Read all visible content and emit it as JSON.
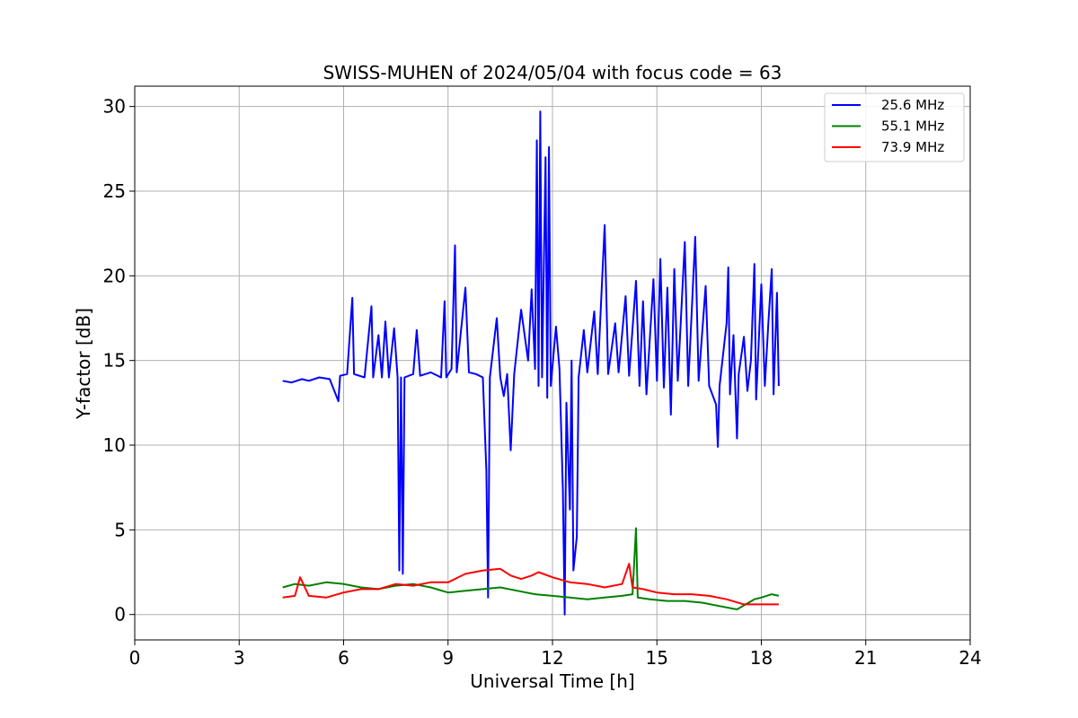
{
  "chart_data": {
    "type": "line",
    "title": "SWISS-MUHEN of 2024/05/04 with focus code = 63",
    "xlabel": "Universal Time [h]",
    "ylabel": "Y-factor [dB]",
    "xlim": [
      0,
      24
    ],
    "ylim": [
      -1.5,
      31.2
    ],
    "x_ticks": [
      "0",
      "3",
      "6",
      "9",
      "12",
      "15",
      "18",
      "21",
      "24"
    ],
    "y_ticks": [
      "0",
      "5",
      "10",
      "15",
      "20",
      "25",
      "30"
    ],
    "grid": true,
    "legend_position": "top-right",
    "series": [
      {
        "name": "25.6 MHz",
        "color": "#0000ff",
        "points": [
          [
            4.25,
            13.8
          ],
          [
            4.5,
            13.7
          ],
          [
            4.8,
            13.9
          ],
          [
            5.0,
            13.8
          ],
          [
            5.3,
            14.0
          ],
          [
            5.6,
            13.9
          ],
          [
            5.85,
            12.6
          ],
          [
            5.9,
            14.1
          ],
          [
            6.1,
            14.2
          ],
          [
            6.25,
            18.7
          ],
          [
            6.3,
            14.2
          ],
          [
            6.6,
            14.0
          ],
          [
            6.8,
            18.2
          ],
          [
            6.85,
            14.0
          ],
          [
            7.0,
            16.5
          ],
          [
            7.1,
            14.0
          ],
          [
            7.2,
            17.3
          ],
          [
            7.3,
            14.0
          ],
          [
            7.45,
            16.9
          ],
          [
            7.55,
            14.0
          ],
          [
            7.6,
            2.6
          ],
          [
            7.65,
            14.0
          ],
          [
            7.7,
            2.4
          ],
          [
            7.75,
            14.0
          ],
          [
            8.0,
            14.2
          ],
          [
            8.1,
            16.8
          ],
          [
            8.2,
            14.1
          ],
          [
            8.5,
            14.3
          ],
          [
            8.8,
            14.0
          ],
          [
            8.9,
            18.5
          ],
          [
            8.95,
            14.0
          ],
          [
            9.1,
            14.5
          ],
          [
            9.2,
            21.8
          ],
          [
            9.25,
            14.3
          ],
          [
            9.5,
            19.3
          ],
          [
            9.6,
            14.3
          ],
          [
            9.8,
            14.2
          ],
          [
            10.0,
            14.0
          ],
          [
            10.1,
            8.5
          ],
          [
            10.15,
            1.0
          ],
          [
            10.2,
            14.0
          ],
          [
            10.4,
            17.5
          ],
          [
            10.5,
            14.0
          ],
          [
            10.6,
            12.9
          ],
          [
            10.7,
            14.2
          ],
          [
            10.8,
            9.7
          ],
          [
            10.9,
            14.2
          ],
          [
            11.1,
            18.0
          ],
          [
            11.3,
            15.0
          ],
          [
            11.4,
            19.2
          ],
          [
            11.5,
            14.5
          ],
          [
            11.55,
            28.0
          ],
          [
            11.6,
            13.5
          ],
          [
            11.65,
            29.7
          ],
          [
            11.7,
            14.0
          ],
          [
            11.8,
            27.0
          ],
          [
            11.85,
            12.8
          ],
          [
            11.9,
            27.6
          ],
          [
            11.95,
            13.5
          ],
          [
            12.1,
            17.0
          ],
          [
            12.2,
            14.5
          ],
          [
            12.3,
            7.3
          ],
          [
            12.35,
            0.0
          ],
          [
            12.4,
            12.5
          ],
          [
            12.5,
            6.2
          ],
          [
            12.55,
            15.0
          ],
          [
            12.6,
            2.6
          ],
          [
            12.7,
            4.6
          ],
          [
            12.75,
            14.0
          ],
          [
            12.9,
            16.8
          ],
          [
            13.0,
            14.3
          ],
          [
            13.2,
            17.9
          ],
          [
            13.3,
            14.2
          ],
          [
            13.5,
            23.0
          ],
          [
            13.6,
            14.2
          ],
          [
            13.8,
            17.2
          ],
          [
            13.9,
            14.3
          ],
          [
            14.1,
            18.8
          ],
          [
            14.2,
            14.1
          ],
          [
            14.4,
            19.7
          ],
          [
            14.5,
            13.5
          ],
          [
            14.6,
            18.5
          ],
          [
            14.7,
            13.0
          ],
          [
            14.9,
            19.8
          ],
          [
            15.0,
            13.8
          ],
          [
            15.1,
            21.0
          ],
          [
            15.2,
            13.4
          ],
          [
            15.3,
            19.3
          ],
          [
            15.4,
            11.8
          ],
          [
            15.5,
            20.4
          ],
          [
            15.6,
            13.8
          ],
          [
            15.8,
            22.0
          ],
          [
            15.9,
            13.5
          ],
          [
            16.1,
            22.3
          ],
          [
            16.2,
            13.8
          ],
          [
            16.4,
            19.4
          ],
          [
            16.5,
            13.5
          ],
          [
            16.7,
            12.4
          ],
          [
            16.75,
            9.9
          ],
          [
            16.8,
            13.5
          ],
          [
            17.0,
            17.2
          ],
          [
            17.05,
            20.5
          ],
          [
            17.1,
            13.0
          ],
          [
            17.2,
            16.5
          ],
          [
            17.3,
            10.4
          ],
          [
            17.35,
            14.2
          ],
          [
            17.5,
            16.4
          ],
          [
            17.6,
            13.2
          ],
          [
            17.7,
            15.0
          ],
          [
            17.8,
            20.7
          ],
          [
            17.85,
            12.7
          ],
          [
            18.0,
            19.5
          ],
          [
            18.1,
            13.5
          ],
          [
            18.2,
            17.2
          ],
          [
            18.3,
            20.4
          ],
          [
            18.35,
            13.0
          ],
          [
            18.45,
            19.0
          ],
          [
            18.5,
            13.5
          ]
        ]
      },
      {
        "name": "55.1 MHz",
        "color": "#008000",
        "points": [
          [
            4.25,
            1.6
          ],
          [
            4.6,
            1.8
          ],
          [
            5.0,
            1.7
          ],
          [
            5.5,
            1.9
          ],
          [
            6.0,
            1.8
          ],
          [
            6.5,
            1.6
          ],
          [
            7.0,
            1.5
          ],
          [
            7.5,
            1.7
          ],
          [
            8.0,
            1.8
          ],
          [
            8.5,
            1.6
          ],
          [
            9.0,
            1.3
          ],
          [
            9.5,
            1.4
          ],
          [
            10.0,
            1.5
          ],
          [
            10.5,
            1.6
          ],
          [
            11.0,
            1.4
          ],
          [
            11.5,
            1.2
          ],
          [
            12.0,
            1.1
          ],
          [
            12.5,
            1.0
          ],
          [
            13.0,
            0.9
          ],
          [
            13.5,
            1.0
          ],
          [
            14.0,
            1.1
          ],
          [
            14.3,
            1.2
          ],
          [
            14.4,
            5.1
          ],
          [
            14.45,
            1.0
          ],
          [
            14.8,
            0.9
          ],
          [
            15.3,
            0.8
          ],
          [
            15.8,
            0.8
          ],
          [
            16.3,
            0.7
          ],
          [
            16.8,
            0.5
          ],
          [
            17.3,
            0.3
          ],
          [
            17.8,
            0.9
          ],
          [
            18.0,
            1.0
          ],
          [
            18.3,
            1.2
          ],
          [
            18.5,
            1.1
          ]
        ]
      },
      {
        "name": "73.9 MHz",
        "color": "#ff0000",
        "points": [
          [
            4.25,
            1.0
          ],
          [
            4.6,
            1.1
          ],
          [
            4.75,
            2.2
          ],
          [
            5.0,
            1.1
          ],
          [
            5.5,
            1.0
          ],
          [
            6.0,
            1.3
          ],
          [
            6.5,
            1.5
          ],
          [
            7.0,
            1.5
          ],
          [
            7.5,
            1.8
          ],
          [
            8.0,
            1.7
          ],
          [
            8.5,
            1.9
          ],
          [
            9.0,
            1.9
          ],
          [
            9.5,
            2.4
          ],
          [
            10.0,
            2.6
          ],
          [
            10.5,
            2.7
          ],
          [
            10.8,
            2.3
          ],
          [
            11.1,
            2.1
          ],
          [
            11.4,
            2.3
          ],
          [
            11.6,
            2.5
          ],
          [
            12.0,
            2.2
          ],
          [
            12.5,
            1.9
          ],
          [
            13.0,
            1.8
          ],
          [
            13.5,
            1.6
          ],
          [
            14.0,
            1.8
          ],
          [
            14.2,
            3.0
          ],
          [
            14.3,
            1.6
          ],
          [
            14.6,
            1.5
          ],
          [
            15.0,
            1.3
          ],
          [
            15.5,
            1.2
          ],
          [
            16.0,
            1.2
          ],
          [
            16.5,
            1.1
          ],
          [
            17.0,
            0.9
          ],
          [
            17.5,
            0.6
          ],
          [
            18.0,
            0.6
          ],
          [
            18.5,
            0.6
          ]
        ]
      }
    ]
  }
}
